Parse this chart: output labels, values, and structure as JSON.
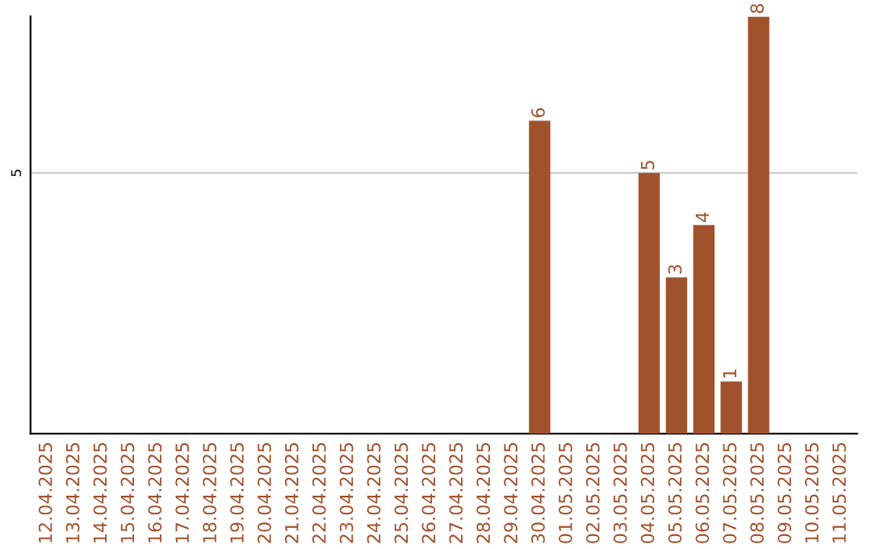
{
  "chart_data": {
    "type": "bar",
    "categories": [
      "12.04.2025",
      "13.04.2025",
      "14.04.2025",
      "15.04.2025",
      "16.04.2025",
      "17.04.2025",
      "18.04.2025",
      "19.04.2025",
      "20.04.2025",
      "21.04.2025",
      "22.04.2025",
      "23.04.2025",
      "24.04.2025",
      "25.04.2025",
      "26.04.2025",
      "27.04.2025",
      "28.04.2025",
      "29.04.2025",
      "30.04.2025",
      "01.05.2025",
      "02.05.2025",
      "03.05.2025",
      "04.05.2025",
      "05.05.2025",
      "06.05.2025",
      "07.05.2025",
      "08.05.2025",
      "09.05.2025",
      "10.05.2025",
      "11.05.2025"
    ],
    "values": [
      null,
      null,
      null,
      null,
      null,
      null,
      null,
      null,
      null,
      null,
      null,
      null,
      null,
      null,
      null,
      null,
      null,
      null,
      6,
      null,
      null,
      null,
      5,
      3,
      4,
      1,
      8,
      null,
      null,
      null
    ],
    "data_labels": true,
    "color": "#a0522d",
    "ylim": [
      0,
      8
    ],
    "yticks": [
      5
    ],
    "grid": "y"
  }
}
